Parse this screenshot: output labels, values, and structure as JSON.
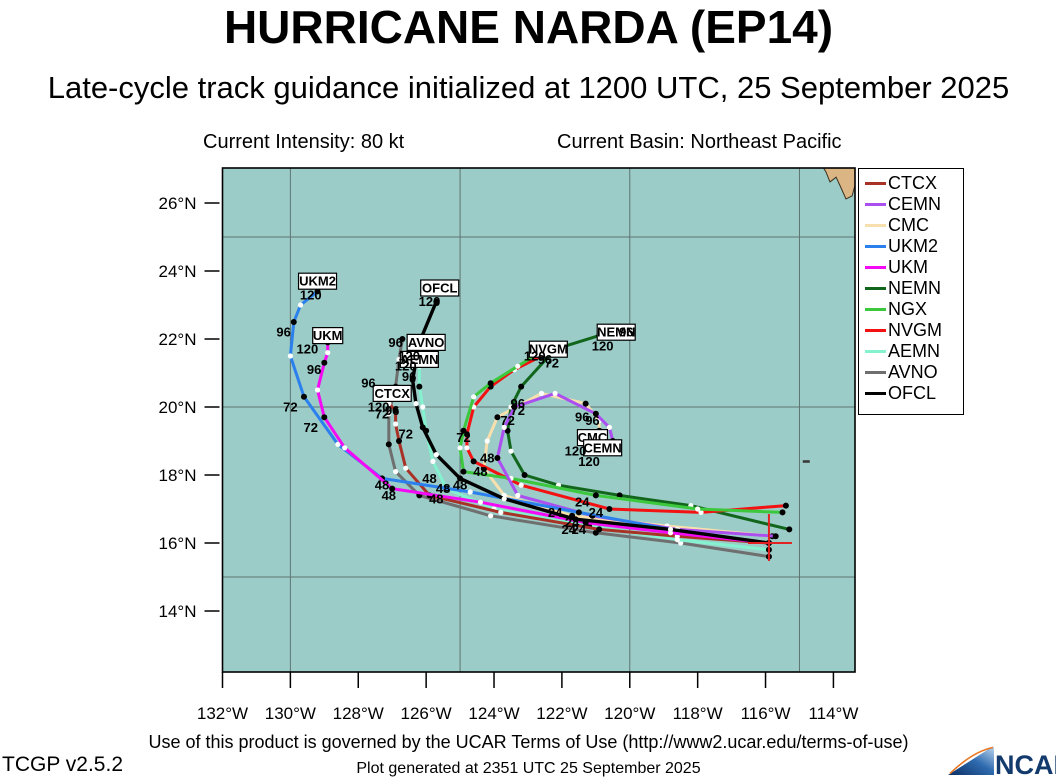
{
  "header": {
    "title": "HURRICANE NARDA (EP14)",
    "subtitle": "Late-cycle track guidance initialized at 1200 UTC, 25 September 2025",
    "intensity": "Current Intensity: 80 kt",
    "basin": "Current Basin: Northeast Pacific"
  },
  "legend": {
    "items": [
      {
        "label": "CTCX",
        "color": "#a93226"
      },
      {
        "label": "CEMN",
        "color": "#ab4ff0"
      },
      {
        "label": "CMC",
        "color": "#f8e0ae"
      },
      {
        "label": "UKM2",
        "color": "#2b80ee"
      },
      {
        "label": "UKM",
        "color": "#f50af5"
      },
      {
        "label": "NEMN",
        "color": "#11661c"
      },
      {
        "label": "NGX",
        "color": "#3cc83c"
      },
      {
        "label": "NVGM",
        "color": "#f31111"
      },
      {
        "label": "AEMN",
        "color": "#84f2cf"
      },
      {
        "label": "AVNO",
        "color": "#6f6f6f"
      },
      {
        "label": "OFCL",
        "color": "#000000"
      }
    ]
  },
  "chart_data": {
    "type": "line",
    "title": "Hurricane Narda (EP14) late-cycle track guidance, initialized 1200 UTC 25 September 2025",
    "projection": "plate-carree",
    "x_axis": {
      "ticks_deg_west": [
        132,
        130,
        128,
        126,
        124,
        122,
        120,
        118,
        116,
        114
      ],
      "suffix": "°W"
    },
    "y_axis": {
      "ticks_deg_north": [
        26,
        24,
        22,
        20,
        18,
        16,
        14
      ],
      "suffix": "°N"
    },
    "axis_range": {
      "lon_west_max": 132.0,
      "lon_west_min": 113.4,
      "lat_max": 27.0,
      "lat_min": 12.2
    },
    "gridlines": {
      "lon_west": [
        130,
        125,
        120,
        115
      ],
      "lat": [
        25,
        20,
        15
      ]
    },
    "hours_per_point": 12,
    "forecast_hours_labeled": [
      24,
      48,
      72,
      96,
      120
    ],
    "current_position": {
      "lat": 16.0,
      "lon_west": 115.9
    },
    "draw_order": [
      "CMC",
      "AVNO",
      "AEMN",
      "CTCX",
      "NEMN",
      "NVGM",
      "NGX",
      "CEMN",
      "UKM2",
      "UKM",
      "OFCL"
    ],
    "series": [
      {
        "name": "CTCX",
        "color": "#a93226",
        "points": [
          [
            16.0,
            115.9
          ],
          [
            16.2,
            118.6
          ],
          [
            16.4,
            120.9
          ],
          [
            16.9,
            123.8
          ],
          [
            17.4,
            125.9
          ],
          [
            18.2,
            126.6
          ],
          [
            19.0,
            126.8
          ],
          [
            19.5,
            126.9
          ],
          [
            19.9,
            126.9
          ],
          [
            20.1,
            127.1
          ],
          [
            20.3,
            127.2
          ]
        ]
      },
      {
        "name": "CEMN",
        "color": "#ab4ff0",
        "points": [
          [
            16.2,
            115.7
          ],
          [
            16.4,
            118.6
          ],
          [
            16.8,
            121.1
          ],
          [
            17.4,
            123.3
          ],
          [
            18.5,
            123.9
          ],
          [
            19.4,
            123.7
          ],
          [
            20.0,
            123.4
          ],
          [
            20.4,
            122.2
          ],
          [
            19.8,
            121.0
          ],
          [
            19.4,
            120.6
          ],
          [
            19.0,
            120.5
          ]
        ]
      },
      {
        "name": "CMC",
        "color": "#f8e0ae",
        "points": [
          [
            16.2,
            115.8
          ],
          [
            16.5,
            118.9
          ],
          [
            16.8,
            121.7
          ],
          [
            17.4,
            123.7
          ],
          [
            18.2,
            124.3
          ],
          [
            19.0,
            124.2
          ],
          [
            19.7,
            123.9
          ],
          [
            20.4,
            122.6
          ],
          [
            20.1,
            121.3
          ],
          [
            19.6,
            120.9
          ],
          [
            19.3,
            120.9
          ]
        ]
      },
      {
        "name": "UKM2",
        "color": "#2b80ee",
        "points": [
          [
            16.0,
            115.9
          ],
          [
            16.4,
            118.8
          ],
          [
            16.9,
            121.5
          ],
          [
            17.5,
            124.7
          ],
          [
            17.9,
            127.3
          ],
          [
            18.9,
            128.6
          ],
          [
            20.3,
            129.6
          ],
          [
            21.5,
            130.0
          ],
          [
            22.5,
            129.9
          ],
          [
            23.0,
            129.7
          ],
          [
            23.4,
            129.2
          ]
        ]
      },
      {
        "name": "UKM",
        "color": "#f50af5",
        "points": [
          [
            16.0,
            115.9
          ],
          [
            16.3,
            118.8
          ],
          [
            16.6,
            121.3
          ],
          [
            17.2,
            124.4
          ],
          [
            17.6,
            127.0
          ],
          [
            18.8,
            128.4
          ],
          [
            19.7,
            129.0
          ],
          [
            20.5,
            129.2
          ],
          [
            21.3,
            129.0
          ],
          [
            21.6,
            128.9
          ],
          [
            21.9,
            128.9
          ]
        ]
      },
      {
        "name": "NEMN",
        "color": "#11661c",
        "points": [
          [
            16.4,
            115.3
          ],
          [
            17.1,
            118.2
          ],
          [
            17.4,
            120.3
          ],
          [
            17.7,
            122.1
          ],
          [
            18.0,
            123.1
          ],
          [
            18.7,
            123.5
          ],
          [
            19.3,
            123.6
          ],
          [
            20.0,
            123.5
          ],
          [
            20.6,
            123.2
          ],
          [
            21.7,
            122.2
          ],
          [
            22.1,
            120.9
          ]
        ]
      },
      {
        "name": "NGX",
        "color": "#3cc83c",
        "points": [
          [
            16.9,
            115.5
          ],
          [
            17.0,
            118.0
          ],
          [
            17.4,
            121.0
          ],
          [
            17.9,
            123.5
          ],
          [
            18.1,
            124.9
          ],
          [
            18.8,
            125.0
          ],
          [
            19.3,
            124.9
          ],
          [
            20.3,
            124.6
          ],
          [
            20.7,
            124.1
          ],
          [
            21.2,
            123.3
          ],
          [
            21.7,
            122.5
          ]
        ]
      },
      {
        "name": "NVGM",
        "color": "#f31111",
        "points": [
          [
            17.1,
            115.4
          ],
          [
            16.9,
            117.9
          ],
          [
            17.0,
            120.6
          ],
          [
            17.7,
            123.2
          ],
          [
            18.4,
            124.6
          ],
          [
            18.8,
            124.8
          ],
          [
            19.2,
            124.8
          ],
          [
            20.0,
            124.6
          ],
          [
            20.6,
            124.1
          ],
          [
            21.1,
            123.4
          ],
          [
            21.5,
            122.6
          ]
        ]
      },
      {
        "name": "AEMN",
        "color": "#84f2cf",
        "points": [
          [
            15.8,
            115.9
          ],
          [
            16.1,
            118.6
          ],
          [
            16.5,
            121.2
          ],
          [
            17.0,
            124.0
          ],
          [
            17.6,
            125.4
          ],
          [
            18.4,
            125.8
          ],
          [
            19.3,
            126.0
          ],
          [
            20.0,
            126.1
          ],
          [
            20.6,
            126.2
          ],
          [
            21.2,
            126.2
          ],
          [
            21.6,
            126.2
          ]
        ]
      },
      {
        "name": "AVNO",
        "color": "#6f6f6f",
        "points": [
          [
            15.6,
            115.9
          ],
          [
            16.0,
            118.5
          ],
          [
            16.3,
            121.0
          ],
          [
            16.8,
            124.1
          ],
          [
            17.4,
            126.2
          ],
          [
            18.1,
            126.9
          ],
          [
            18.9,
            127.1
          ],
          [
            19.8,
            127.1
          ],
          [
            20.6,
            126.9
          ],
          [
            21.4,
            126.8
          ],
          [
            22.0,
            126.7
          ]
        ]
      },
      {
        "name": "OFCL",
        "color": "#000000",
        "points": [
          [
            16.0,
            115.9
          ],
          [
            16.4,
            118.8
          ],
          [
            16.7,
            121.6
          ],
          [
            17.3,
            123.7
          ],
          [
            17.9,
            125.0
          ],
          [
            18.6,
            125.7
          ],
          [
            19.4,
            126.1
          ],
          [
            20.1,
            126.3
          ],
          [
            20.8,
            126.4
          ],
          [
            21.9,
            126.2
          ],
          [
            23.1,
            125.7
          ]
        ]
      }
    ],
    "annotations": [
      {
        "t": "UKM2",
        "lat": 23.7,
        "lon": 129.2,
        "box": true
      },
      {
        "t": "UKM",
        "lat": 22.1,
        "lon": 128.9,
        "box": true
      },
      {
        "t": "OFCL",
        "lat": 23.5,
        "lon": 125.6,
        "box": true
      },
      {
        "t": "AVNO",
        "lat": 21.9,
        "lon": 126.0,
        "box": true
      },
      {
        "t": "AEMN",
        "lat": 21.4,
        "lon": 126.2,
        "box": true
      },
      {
        "t": "CTCX",
        "lat": 20.4,
        "lon": 127.0,
        "box": true
      },
      {
        "t": "NVGM",
        "lat": 21.7,
        "lon": 122.4,
        "box": true
      },
      {
        "t": "NEMN",
        "lat": 22.2,
        "lon": 120.4,
        "box": true
      },
      {
        "t": "CMC",
        "lat": 19.1,
        "lon": 121.1,
        "box": true
      },
      {
        "t": "CEMN",
        "lat": 18.8,
        "lon": 120.8,
        "box": true
      },
      {
        "t": "120",
        "lat": 23.3,
        "lon": 129.4,
        "box": false
      },
      {
        "t": "96",
        "lat": 22.2,
        "lon": 130.2,
        "box": false
      },
      {
        "t": "72",
        "lat": 20.0,
        "lon": 130.0,
        "box": false
      },
      {
        "t": "120",
        "lat": 21.7,
        "lon": 129.5,
        "box": false
      },
      {
        "t": "96",
        "lat": 21.1,
        "lon": 129.3,
        "box": false
      },
      {
        "t": "72",
        "lat": 19.4,
        "lon": 129.4,
        "box": false
      },
      {
        "t": "120",
        "lat": 23.1,
        "lon": 125.9,
        "box": false
      },
      {
        "t": "96",
        "lat": 21.9,
        "lon": 126.9,
        "box": false
      },
      {
        "t": "120",
        "lat": 21.5,
        "lon": 126.5,
        "box": false
      },
      {
        "t": "120",
        "lat": 21.2,
        "lon": 126.6,
        "box": false
      },
      {
        "t": "96",
        "lat": 20.9,
        "lon": 126.5,
        "box": false
      },
      {
        "t": "96",
        "lat": 20.7,
        "lon": 127.7,
        "box": false
      },
      {
        "t": "120",
        "lat": 20.0,
        "lon": 127.4,
        "box": false
      },
      {
        "t": "72",
        "lat": 19.8,
        "lon": 127.3,
        "box": false
      },
      {
        "t": "96",
        "lat": 19.9,
        "lon": 127.0,
        "box": false
      },
      {
        "t": "72",
        "lat": 19.2,
        "lon": 126.6,
        "box": false
      },
      {
        "t": "72",
        "lat": 19.1,
        "lon": 124.9,
        "box": false
      },
      {
        "t": "96",
        "lat": 20.1,
        "lon": 123.3,
        "box": false
      },
      {
        "t": "72",
        "lat": 19.9,
        "lon": 123.3,
        "box": false
      },
      {
        "t": "72",
        "lat": 19.6,
        "lon": 123.6,
        "box": false
      },
      {
        "t": "120",
        "lat": 21.5,
        "lon": 122.8,
        "box": false
      },
      {
        "t": "96",
        "lat": 21.4,
        "lon": 122.5,
        "box": false
      },
      {
        "t": "72",
        "lat": 21.3,
        "lon": 122.3,
        "box": false
      },
      {
        "t": "96",
        "lat": 22.2,
        "lon": 120.1,
        "box": false
      },
      {
        "t": "120",
        "lat": 21.8,
        "lon": 120.8,
        "box": false
      },
      {
        "t": "96",
        "lat": 19.7,
        "lon": 121.4,
        "box": false
      },
      {
        "t": "96",
        "lat": 19.6,
        "lon": 121.1,
        "box": false
      },
      {
        "t": "120",
        "lat": 18.7,
        "lon": 121.6,
        "box": false
      },
      {
        "t": "120",
        "lat": 18.4,
        "lon": 121.2,
        "box": false
      },
      {
        "t": "48",
        "lat": 17.7,
        "lon": 127.3,
        "box": false
      },
      {
        "t": "48",
        "lat": 17.4,
        "lon": 127.1,
        "box": false
      },
      {
        "t": "48",
        "lat": 17.9,
        "lon": 125.9,
        "box": false
      },
      {
        "t": "48",
        "lat": 17.6,
        "lon": 125.5,
        "box": false
      },
      {
        "t": "48",
        "lat": 17.3,
        "lon": 125.7,
        "box": false
      },
      {
        "t": "48",
        "lat": 17.7,
        "lon": 125.0,
        "box": false
      },
      {
        "t": "48",
        "lat": 18.1,
        "lon": 124.4,
        "box": false
      },
      {
        "t": "48",
        "lat": 18.5,
        "lon": 124.2,
        "box": false
      },
      {
        "t": "24",
        "lat": 17.2,
        "lon": 121.4,
        "box": false
      },
      {
        "t": "24",
        "lat": 16.9,
        "lon": 122.2,
        "box": false
      },
      {
        "t": "24",
        "lat": 16.9,
        "lon": 121.0,
        "box": false
      },
      {
        "t": "24",
        "lat": 16.6,
        "lon": 121.7,
        "box": false
      },
      {
        "t": "24",
        "lat": 16.4,
        "lon": 121.5,
        "box": false
      },
      {
        "t": "24",
        "lat": 16.4,
        "lon": 121.8,
        "box": false
      }
    ],
    "geography": {
      "land_color": "#dcb584",
      "ocean_color": "#9bccc8",
      "land_polygon": [
        [
          27.1,
          114.33
        ],
        [
          27.1,
          113.3
        ],
        [
          26.76,
          113.3
        ],
        [
          26.21,
          113.45
        ],
        [
          26.12,
          113.63
        ],
        [
          26.5,
          113.8
        ],
        [
          26.76,
          113.92
        ],
        [
          26.62,
          114.1
        ],
        [
          26.91,
          114.22
        ]
      ],
      "island": {
        "lat": 18.4,
        "lon_west": 114.8
      }
    }
  },
  "footer": {
    "terms": "Use of this product is governed by the UCAR Terms of Use (http://www2.ucar.edu/terms-of-use)",
    "version": "TCGP v2.5.2",
    "generated": "Plot generated at 2351 UTC  25 September 2025",
    "logo_text": "NCAR"
  }
}
